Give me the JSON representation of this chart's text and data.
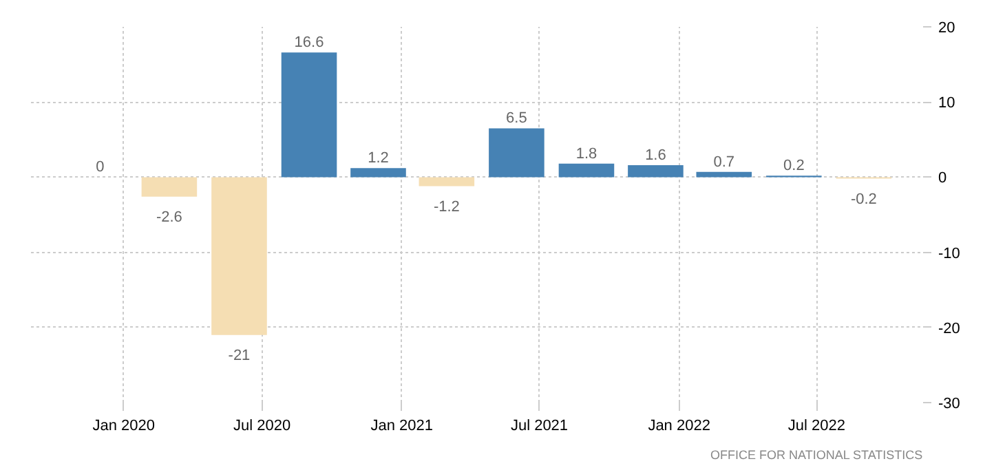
{
  "chart_data": {
    "type": "bar",
    "x": [
      "2019-12-01",
      "2020-03-01",
      "2020-06-01",
      "2020-09-01",
      "2020-12-01",
      "2021-03-01",
      "2021-06-01",
      "2021-09-01",
      "2021-12-01",
      "2022-03-01",
      "2022-06-01",
      "2022-09-01"
    ],
    "values": [
      0,
      -2.6,
      -21,
      16.6,
      1.2,
      -1.2,
      6.5,
      1.8,
      1.6,
      0.7,
      0.2,
      -0.2
    ],
    "colors": [
      "#4682b4",
      "#f5deb3",
      "#f5deb3",
      "#4682b4",
      "#4682b4",
      "#f5deb3",
      "#4682b4",
      "#4682b4",
      "#4682b4",
      "#4682b4",
      "#4682b4",
      "#f5deb3"
    ],
    "data_labels": true,
    "xlim": [
      "2019-09-01",
      "2022-11-18"
    ],
    "xticks": [
      {
        "value": "2020-01-01",
        "label": "Jan 2020"
      },
      {
        "value": "2020-07-01",
        "label": "Jul 2020"
      },
      {
        "value": "2021-01-01",
        "label": "Jan 2021"
      },
      {
        "value": "2021-07-01",
        "label": "Jul 2021"
      },
      {
        "value": "2022-01-01",
        "label": "Jan 2022"
      },
      {
        "value": "2022-07-01",
        "label": "Jul 2022"
      }
    ],
    "ylim": [
      -30,
      20
    ],
    "yticks": [
      -30,
      -20,
      -10,
      0,
      10,
      20
    ],
    "grid": true,
    "annotations": [
      "OFFICE FOR NATIONAL STATISTICS"
    ]
  }
}
